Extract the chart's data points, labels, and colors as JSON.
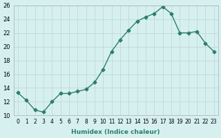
{
  "x": [
    0,
    1,
    2,
    3,
    4,
    5,
    6,
    7,
    8,
    9,
    10,
    11,
    12,
    13,
    14,
    15,
    16,
    17,
    18,
    19,
    20,
    21,
    22,
    23
  ],
  "y": [
    13.3,
    12.2,
    10.8,
    10.5,
    12.0,
    13.2,
    13.2,
    13.5,
    13.8,
    14.8,
    16.7,
    19.3,
    21.0,
    22.4,
    23.7,
    24.3,
    24.8,
    25.8,
    24.8,
    22.0,
    22.0,
    22.2,
    20.5,
    19.3
  ],
  "line_color": "#2e7d6e",
  "marker_color": "#2e7d6e",
  "bg_color": "#d6f0f0",
  "grid_color": "#c0d8d8",
  "xlabel": "Humidex (Indice chaleur)",
  "ylim": [
    10,
    26
  ],
  "xlim": [
    -0.5,
    23.5
  ],
  "yticks": [
    10,
    12,
    14,
    16,
    18,
    20,
    22,
    24,
    26
  ],
  "xtick_labels": [
    "0",
    "1",
    "2",
    "3",
    "4",
    "5",
    "6",
    "7",
    "8",
    "9",
    "10",
    "11",
    "12",
    "13",
    "14",
    "15",
    "16",
    "17",
    "18",
    "19",
    "20",
    "21",
    "22",
    "23"
  ]
}
